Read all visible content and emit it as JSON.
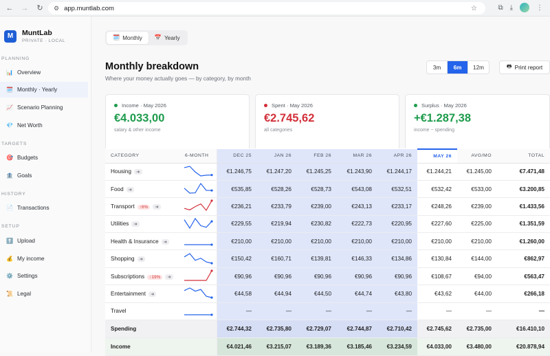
{
  "browser": {
    "url": "app.muntlab.com"
  },
  "brand": {
    "logo": "M",
    "name": "MuntLab",
    "sub": "PRIVATE · LOCAL"
  },
  "sidebar": {
    "planning": "PLANNING",
    "targets": "TARGETS",
    "history": "HISTORY",
    "setup": "SETUP",
    "items": [
      {
        "label": "Overview",
        "icon": "📊"
      },
      {
        "label": "Monthly · Yearly",
        "icon": "🗓️"
      },
      {
        "label": "Scenario Planning",
        "icon": "📈"
      },
      {
        "label": "Net Worth",
        "icon": "💎"
      },
      {
        "label": "Budgets",
        "icon": "🎯"
      },
      {
        "label": "Goals",
        "icon": "🏦"
      },
      {
        "label": "Transactions",
        "icon": "📄"
      },
      {
        "label": "Upload",
        "icon": "⬆️"
      },
      {
        "label": "My income",
        "icon": "💰"
      },
      {
        "label": "Settings",
        "icon": "⚙️"
      },
      {
        "label": "Legal",
        "icon": "📜"
      }
    ]
  },
  "tabs": {
    "monthly": "Monthly",
    "yearly": "Yearly"
  },
  "header": {
    "title": "Monthly breakdown",
    "subtitle": "Where your money actually goes — by category, by month"
  },
  "range": {
    "r3": "3m",
    "r6": "6m",
    "r12": "12m"
  },
  "print_label": "Print report",
  "cards": {
    "income": {
      "label": "Income · May 2026",
      "value": "€4.033,00",
      "caption": "salary & other income",
      "color": "#1e9b4c"
    },
    "spent": {
      "label": "Spent · May 2026",
      "value": "€2.745,62",
      "caption": "all categories",
      "color": "#d2303a"
    },
    "surplus": {
      "label": "Surplus · May 2026",
      "value": "+€1.287,38",
      "caption": "income − spending",
      "color": "#1e9b4c"
    }
  },
  "table": {
    "headers": [
      "CATEGORY",
      "6-MONTH",
      "DEC 25",
      "JAN 26",
      "FEB 26",
      "MAR 26",
      "APR 26",
      "MAY 26",
      "AVG/MO",
      "TOTAL"
    ],
    "rows": [
      {
        "name": "Housing",
        "tag": "",
        "values": [
          "€1.246,75",
          "€1.247,20",
          "€1.245,25",
          "€1.243,90",
          "€1.244,17",
          "€1.244,21",
          "€1.245,00",
          "€7.471,48"
        ],
        "spark": [
          1246.75,
          1247.2,
          1245.25,
          1243.9,
          1244.17,
          1244.21
        ]
      },
      {
        "name": "Food",
        "tag": "",
        "values": [
          "€535,85",
          "€528,26",
          "€528,73",
          "€543,08",
          "€532,51",
          "€532,42",
          "€533,00",
          "€3.200,85"
        ],
        "spark": [
          535.85,
          528.26,
          528.73,
          543.08,
          532.51,
          532.42
        ]
      },
      {
        "name": "Transport",
        "tag": "↑6%",
        "values": [
          "€236,21",
          "€233,79",
          "€239,00",
          "€243,13",
          "€233,17",
          "€248,26",
          "€239,00",
          "€1.433,56"
        ],
        "spark": [
          236.21,
          233.79,
          239.0,
          243.13,
          233.17,
          248.26
        ]
      },
      {
        "name": "Utilities",
        "tag": "",
        "values": [
          "€229,55",
          "€219,94",
          "€230,82",
          "€222,73",
          "€220,95",
          "€227,60",
          "€225,00",
          "€1.351,59"
        ],
        "spark": [
          229.55,
          219.94,
          230.82,
          222.73,
          220.95,
          227.6
        ]
      },
      {
        "name": "Health & Insurance",
        "tag": "",
        "values": [
          "€210,00",
          "€210,00",
          "€210,00",
          "€210,00",
          "€210,00",
          "€210,00",
          "€210,00",
          "€1.260,00"
        ],
        "spark": [
          210,
          210,
          210,
          210,
          210,
          210
        ]
      },
      {
        "name": "Shopping",
        "tag": "",
        "values": [
          "€150,42",
          "€160,71",
          "€139,81",
          "€146,33",
          "€134,86",
          "€130,84",
          "€144,00",
          "€862,97"
        ],
        "spark": [
          150.42,
          160.71,
          139.81,
          146.33,
          134.86,
          130.84
        ]
      },
      {
        "name": "Subscriptions",
        "tag": "↑19%",
        "values": [
          "€90,96",
          "€90,96",
          "€90,96",
          "€90,96",
          "€90,96",
          "€108,67",
          "€94,00",
          "€563,47"
        ],
        "spark": [
          90.96,
          90.96,
          90.96,
          90.96,
          90.96,
          108.67
        ]
      },
      {
        "name": "Entertainment",
        "tag": "",
        "values": [
          "€44,58",
          "€44,94",
          "€44,50",
          "€44,74",
          "€43,80",
          "€43,62",
          "€44,00",
          "€266,18"
        ],
        "spark": [
          44.58,
          44.94,
          44.5,
          44.74,
          43.8,
          43.62
        ]
      },
      {
        "name": "Travel",
        "tag": "",
        "values": [
          "—",
          "—",
          "—",
          "—",
          "—",
          "—",
          "—",
          "—"
        ],
        "spark": [
          0,
          0,
          0,
          0,
          0,
          0
        ]
      }
    ],
    "spending": {
      "label": "Spending",
      "values": [
        "€2.744,32",
        "€2.735,80",
        "€2.729,07",
        "€2.744,87",
        "€2.710,42",
        "€2.745,62",
        "€2.735,00",
        "€16.410,10"
      ]
    },
    "income": {
      "label": "Income",
      "values": [
        "€4.021,46",
        "€3.215,07",
        "€3.189,36",
        "€3.185,46",
        "€3.234,59",
        "€4.033,00",
        "€3.480,00",
        "€20.878,94"
      ]
    }
  }
}
